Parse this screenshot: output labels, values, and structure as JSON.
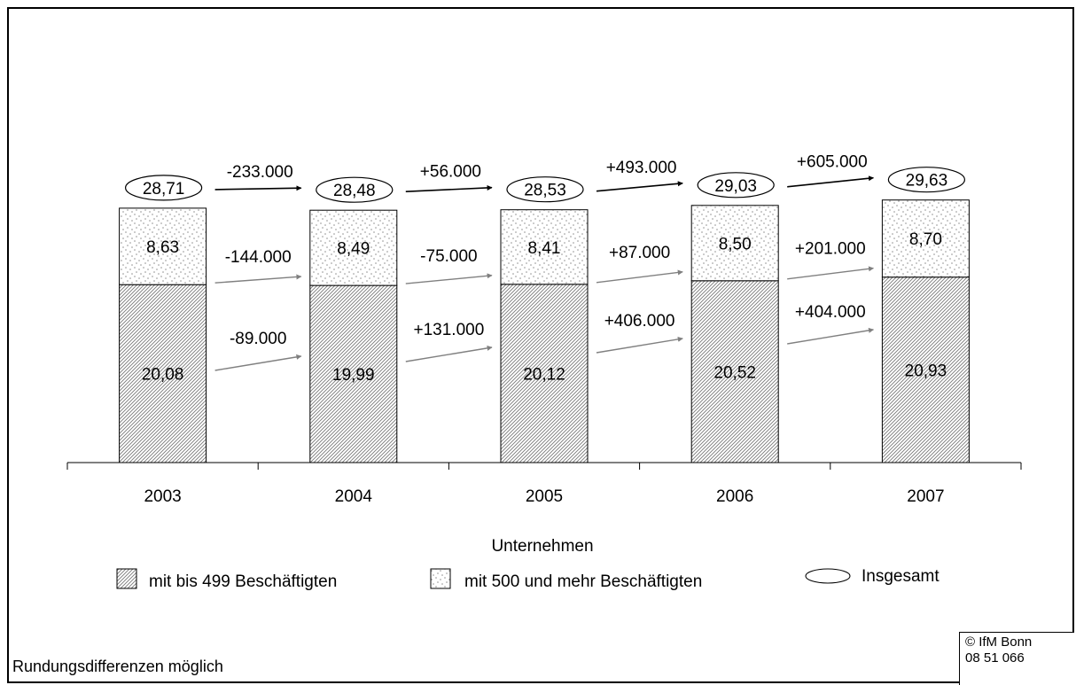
{
  "chart_data": {
    "type": "bar",
    "stacked": true,
    "categories": [
      "2003",
      "2004",
      "2005",
      "2006",
      "2007"
    ],
    "series": [
      {
        "name": "mit bis 499 Beschäftigten",
        "values": [
          20.08,
          19.99,
          20.12,
          20.52,
          20.93
        ],
        "labels": [
          "20,08",
          "19,99",
          "20,12",
          "20,52",
          "20,93"
        ],
        "pattern": "diagonal-hatch"
      },
      {
        "name": "mit 500 und mehr Beschäftigten",
        "values": [
          8.63,
          8.49,
          8.41,
          8.5,
          8.7
        ],
        "labels": [
          "8,63",
          "8,49",
          "8,41",
          "8,50",
          "8,70"
        ],
        "pattern": "dots"
      }
    ],
    "totals": {
      "name": "Insgesamt",
      "values": [
        28.71,
        28.48,
        28.53,
        29.03,
        29.63
      ],
      "labels": [
        "28,71",
        "28,48",
        "28,53",
        "29,03",
        "29,63"
      ]
    },
    "changes": {
      "total": [
        "-233.000",
        "+56.000",
        "+493.000",
        "+605.000"
      ],
      "large": [
        "-144.000",
        "-75.000",
        "+87.000",
        "+201.000"
      ],
      "small": [
        "-89.000",
        "+131.000",
        "+406.000",
        "+404.000"
      ]
    },
    "legend": {
      "title": "Unternehmen",
      "placement": "bottom"
    },
    "ylim": [
      0,
      35
    ],
    "grid": false,
    "title": "",
    "xlabel": "",
    "ylabel": ""
  },
  "footnote": "Rundungsdifferenzen möglich",
  "copyright": {
    "line1": "© IfM Bonn",
    "line2": "08 51 066"
  },
  "colors": {
    "axis": "#000000",
    "arrow_total": "#000000",
    "arrow_series": "#808080",
    "bar_stroke": "#000000"
  }
}
